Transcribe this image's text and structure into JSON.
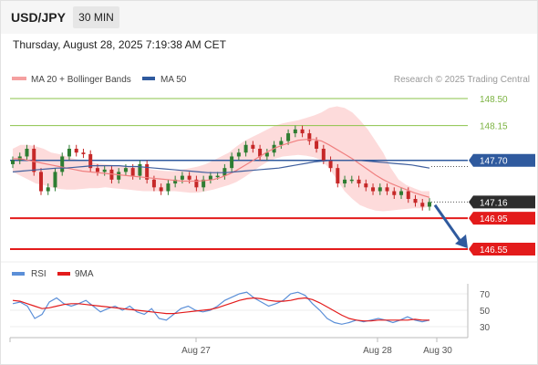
{
  "header": {
    "symbol": "USD/JPY",
    "timeframe": "30 MIN",
    "datetime": "Thursday, August 28, 2025 7:19:38 AM CET"
  },
  "legend": {
    "ma20": "MA 20 + Bollinger Bands",
    "ma50": "MA 50",
    "copyright": "Research © 2025 Trading Central",
    "rsi": "RSI",
    "nine_ma": "9MA"
  },
  "colors": {
    "bullish_candle": "#2e7d32",
    "bearish_candle": "#c62828",
    "bollinger_fill": "#fdd5d5",
    "ma20_line": "#f08080",
    "ma50_line": "#3f5f9e",
    "resistance_line": "#8bc34a",
    "pivot_line": "#2f5a9e",
    "support_line": "#e31b1b",
    "last_price_box": "#2d2d2d",
    "rsi_line": "#5b8fd8",
    "rsi_ma_line": "#e31b1b",
    "arrow": "#2f5a9e"
  },
  "chart_data": {
    "type": "candlestick",
    "x_tick_labels": [
      "Aug 27",
      "Aug 28",
      "Aug 30"
    ],
    "y_range": [
      146.45,
      148.62
    ],
    "levels": [
      {
        "label": "148.50",
        "value": 148.5,
        "kind": "resistance"
      },
      {
        "label": "148.15",
        "value": 148.15,
        "kind": "resistance"
      },
      {
        "label": "147.70",
        "value": 147.7,
        "kind": "pivot"
      },
      {
        "label": "147.16",
        "value": 147.16,
        "kind": "last"
      },
      {
        "label": "146.95",
        "value": 146.95,
        "kind": "support"
      },
      {
        "label": "146.55",
        "value": 146.55,
        "kind": "support"
      }
    ],
    "close_path": [
      147.7,
      147.75,
      147.85,
      147.55,
      147.3,
      147.35,
      147.55,
      147.75,
      147.85,
      147.8,
      147.78,
      147.6,
      147.55,
      147.58,
      147.45,
      147.55,
      147.6,
      147.5,
      147.65,
      147.45,
      147.35,
      147.3,
      147.4,
      147.45,
      147.5,
      147.45,
      147.35,
      147.45,
      147.5,
      147.5,
      147.6,
      147.75,
      147.8,
      147.9,
      147.85,
      147.75,
      147.8,
      147.9,
      147.95,
      148.05,
      148.1,
      148.05,
      147.95,
      147.85,
      147.7,
      147.6,
      147.4,
      147.45,
      147.45,
      147.4,
      147.35,
      147.3,
      147.35,
      147.3,
      147.25,
      147.3,
      147.2,
      147.15,
      147.1,
      147.16
    ],
    "ma20": [
      147.72,
      147.72,
      147.7,
      147.68,
      147.66,
      147.64,
      147.62,
      147.6,
      147.58,
      147.56,
      147.55,
      147.54,
      147.53,
      147.52,
      147.51,
      147.5,
      147.49,
      147.48,
      147.47,
      147.46,
      147.45,
      147.44,
      147.43,
      147.43,
      147.43,
      147.44,
      147.45,
      147.48,
      147.52,
      147.57,
      147.63,
      147.69,
      147.75,
      147.81,
      147.86,
      147.9,
      147.93,
      147.96,
      147.97,
      147.97,
      147.95,
      147.9,
      147.84,
      147.78,
      147.72,
      147.65,
      147.58,
      147.51,
      147.45,
      147.4,
      147.36,
      147.32,
      147.28,
      147.25,
      147.22
    ],
    "bb_upper": [
      147.85,
      147.9,
      147.9,
      147.88,
      147.85,
      147.8,
      147.78,
      147.75,
      147.72,
      147.7,
      147.68,
      147.66,
      147.65,
      147.64,
      147.63,
      147.62,
      147.61,
      147.6,
      147.58,
      147.57,
      147.56,
      147.56,
      147.58,
      147.6,
      147.62,
      147.65,
      147.7,
      147.75,
      147.8,
      147.88,
      147.95,
      148.0,
      148.05,
      148.1,
      148.15,
      148.18,
      148.2,
      148.22,
      148.25,
      148.28,
      148.32,
      148.38,
      148.4,
      148.38,
      148.32,
      148.22,
      148.1,
      147.95,
      147.8,
      147.6,
      147.45,
      147.38,
      147.34,
      147.3,
      147.3
    ],
    "bb_lower": [
      147.55,
      147.5,
      147.45,
      147.4,
      147.38,
      147.35,
      147.33,
      147.32,
      147.32,
      147.33,
      147.34,
      147.34,
      147.35,
      147.34,
      147.33,
      147.32,
      147.31,
      147.3,
      147.3,
      147.3,
      147.3,
      147.3,
      147.29,
      147.28,
      147.28,
      147.3,
      147.32,
      147.35,
      147.38,
      147.42,
      147.48,
      147.55,
      147.62,
      147.68,
      147.72,
      147.75,
      147.76,
      147.77,
      147.76,
      147.74,
      147.7,
      147.6,
      147.45,
      147.3,
      147.2,
      147.12,
      147.08,
      147.05,
      147.04,
      147.05,
      147.06,
      147.07,
      147.08,
      147.08,
      147.1
    ],
    "ma50": [
      147.55,
      147.56,
      147.57,
      147.58,
      147.59,
      147.6,
      147.6,
      147.61,
      147.62,
      147.63,
      147.63,
      147.63,
      147.63,
      147.62,
      147.62,
      147.61,
      147.6,
      147.59,
      147.58,
      147.57,
      147.56,
      147.55,
      147.54,
      147.54,
      147.54,
      147.55,
      147.56,
      147.57,
      147.58,
      147.59,
      147.6,
      147.62,
      147.64,
      147.66,
      147.68,
      147.69,
      147.7,
      147.7,
      147.7,
      147.7,
      147.69,
      147.68,
      147.67,
      147.66,
      147.65,
      147.64,
      147.62,
      147.6
    ],
    "rsi": {
      "ticks": [
        "70",
        "50",
        "30"
      ],
      "range": [
        20,
        80
      ],
      "rsi_values": [
        58,
        60,
        55,
        40,
        45,
        60,
        65,
        58,
        55,
        58,
        62,
        55,
        48,
        52,
        55,
        50,
        55,
        48,
        45,
        52,
        40,
        38,
        45,
        52,
        55,
        50,
        48,
        50,
        55,
        62,
        66,
        70,
        72,
        65,
        60,
        55,
        58,
        62,
        70,
        72,
        68,
        58,
        50,
        40,
        35,
        33,
        35,
        38,
        36,
        38,
        40,
        38,
        35,
        38,
        42,
        38,
        36,
        38
      ],
      "ma9_values": [
        62,
        61,
        58,
        55,
        52,
        53,
        55,
        57,
        58,
        58,
        57,
        56,
        55,
        54,
        53,
        52,
        51,
        50,
        49,
        48,
        47,
        46,
        46,
        47,
        48,
        49,
        50,
        51,
        53,
        56,
        59,
        62,
        64,
        65,
        64,
        62,
        61,
        61,
        62,
        64,
        65,
        63,
        59,
        54,
        49,
        44,
        40,
        38,
        37,
        37,
        38,
        38,
        38,
        38,
        38,
        39,
        38,
        38
      ]
    }
  }
}
